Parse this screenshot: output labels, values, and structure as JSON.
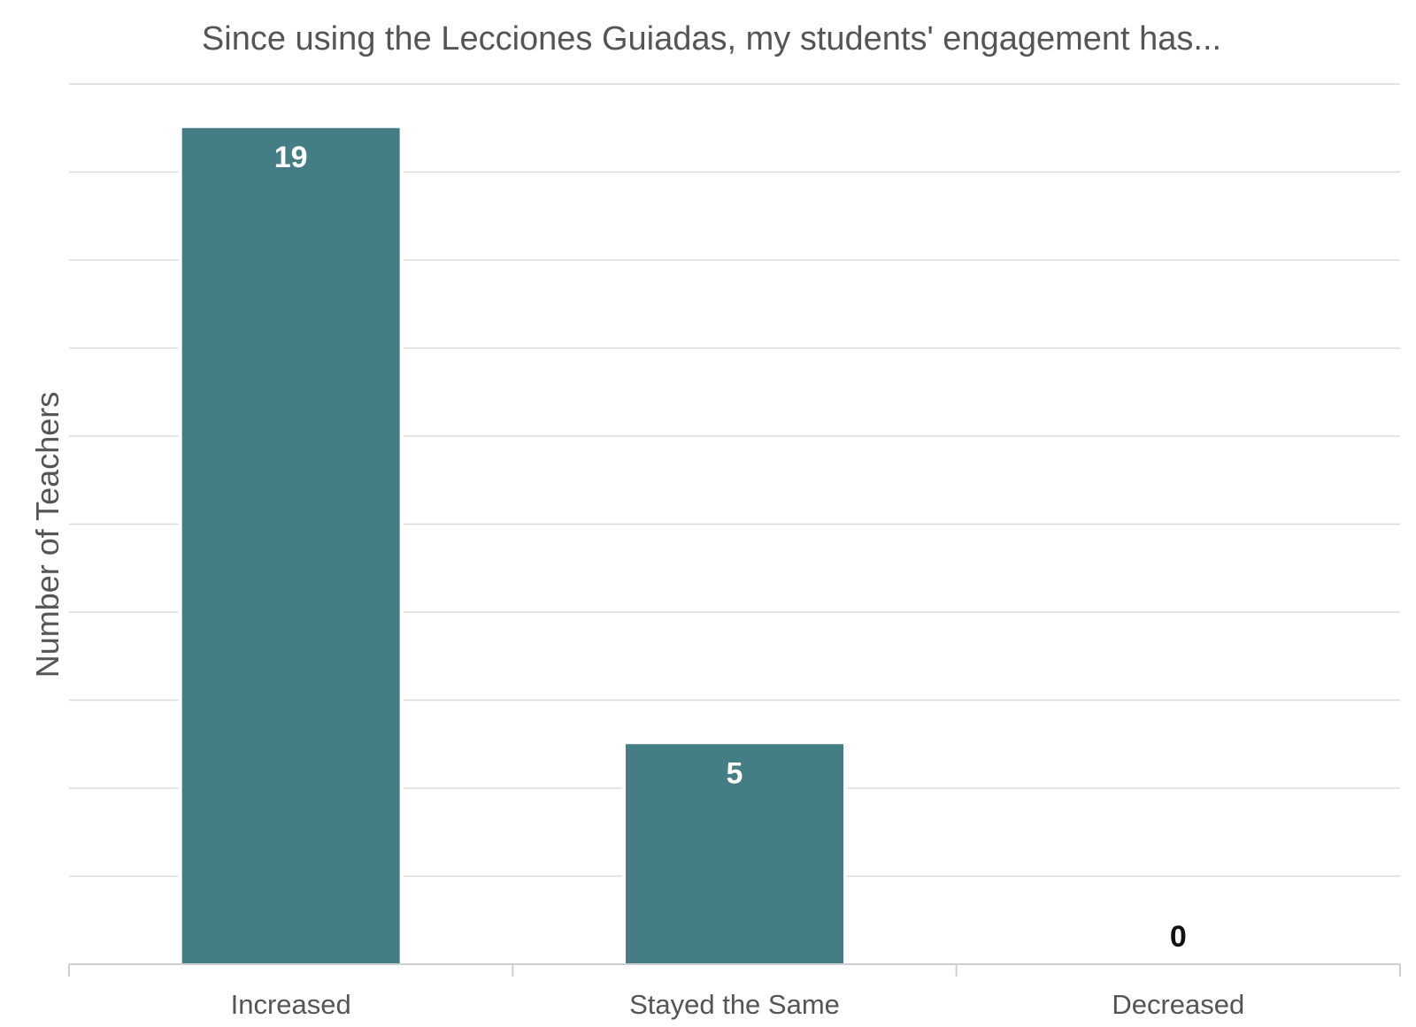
{
  "chart_data": {
    "type": "bar",
    "title": "Since using the Lecciones Guiadas, my students' engagement has...",
    "xlabel": "",
    "ylabel": "Number of Teachers",
    "categories": [
      "Increased",
      "Stayed the Same",
      "Decreased"
    ],
    "values": [
      19,
      5,
      0
    ],
    "data_labels": [
      "19",
      "5",
      "0"
    ],
    "ylim": [
      0,
      20
    ],
    "y_tick_step": 2,
    "y_tick_labels_shown": false,
    "grid": true,
    "legend": "none",
    "colors": {
      "bar": "#457d85",
      "label_inside": "#ffffff",
      "label_outside": "#111111"
    }
  }
}
